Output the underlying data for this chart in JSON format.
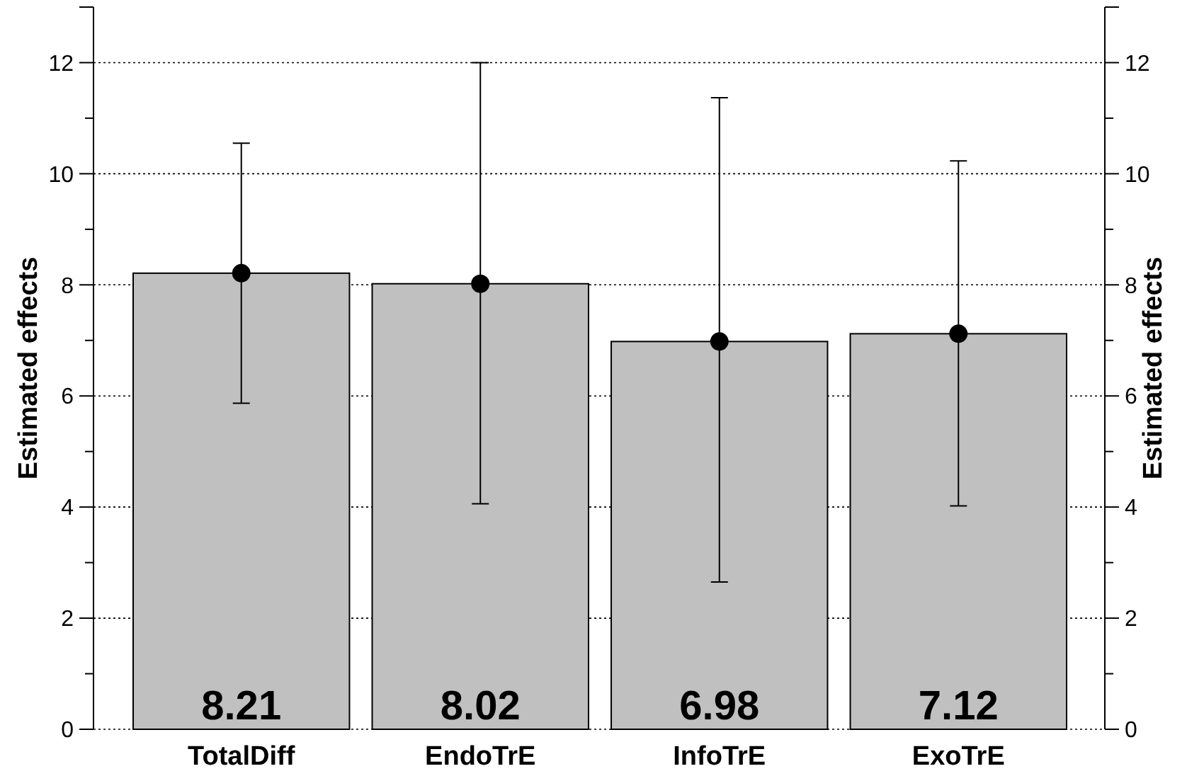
{
  "chart_data": {
    "type": "bar",
    "ylabel": "Estimated effects",
    "y2label": "Estimated effects",
    "categories": [
      "TotalDiff",
      "EndoTrE",
      "InfoTrE",
      "ExoTrE"
    ],
    "series": [
      {
        "color": "#c0c0c0",
        "values": [
          8.21,
          8.02,
          6.98,
          7.12
        ],
        "value_labels": [
          "8.21",
          "8.02",
          "6.98",
          "7.12"
        ],
        "errors": [
          [
            5.87,
            10.55
          ],
          [
            4.06,
            12.0
          ],
          [
            2.65,
            11.37
          ],
          [
            4.02,
            10.23
          ]
        ]
      },
      {
        "type": "scatter",
        "color": "#000000",
        "x": [
          "TotalDiff",
          "EndoTrE",
          "InfoTrE",
          "ExoTrE"
        ],
        "values": [
          8.21,
          8.02,
          6.98,
          7.12
        ],
        "marker": "circle"
      }
    ],
    "ylim": [
      0,
      13
    ],
    "yticks": [
      0,
      {
        "value": 1,
        "label": null
      },
      2,
      {
        "value": 3,
        "label": null
      },
      4,
      {
        "value": 5,
        "label": null
      },
      6,
      {
        "value": 7,
        "label": null
      },
      8,
      {
        "value": 9,
        "label": null
      },
      10,
      {
        "value": 11,
        "label": null
      },
      12
    ],
    "y2lim": [
      0,
      13
    ],
    "y2ticks": [
      0,
      {
        "value": 1,
        "label": null
      },
      2,
      {
        "value": 3,
        "label": null
      },
      4,
      {
        "value": 5,
        "label": null
      },
      6,
      {
        "value": 7,
        "label": null
      },
      8,
      {
        "value": 9,
        "label": null
      },
      10,
      {
        "value": 11,
        "label": null
      },
      12
    ],
    "grid": "y"
  }
}
